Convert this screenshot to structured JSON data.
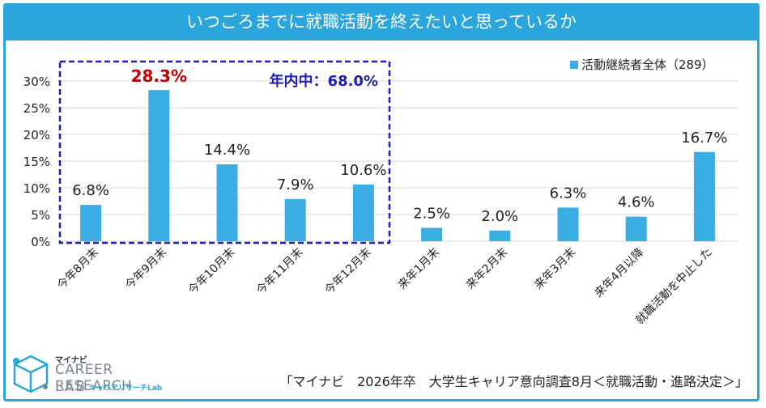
{
  "title": "いつごろまでに就職活動を終えたいと思っているか",
  "legend_label": "活動継続者全体（289）",
  "highlight_label": "年内中：68.0%",
  "source": "「マイナビ　2026年卒　大学生キャリア意向調査8月＜就職活動・進路決定＞」",
  "logo": {
    "top": "マイナビ",
    "main": "CAREER RESEARCH",
    "lab": "LAB",
    "sub": "キャリアリサーチLab"
  },
  "colors": {
    "bar": "#3aaee3",
    "title_bg": "#2aa6dd",
    "highlight_value": "#c00000",
    "highlight_box": "#1f1fb4"
  },
  "chart_data": {
    "type": "bar",
    "categories": [
      "今年8月末",
      "今年9月末",
      "今年10月末",
      "今年11月末",
      "今年12月末",
      "来年1月末",
      "来年2月末",
      "来年3月末",
      "来年4月以降",
      "就職活動を中止した"
    ],
    "series": [
      {
        "name": "活動継続者全体（289）",
        "values": [
          6.8,
          28.3,
          14.4,
          7.9,
          10.6,
          2.5,
          2.0,
          6.3,
          4.6,
          16.7
        ]
      }
    ],
    "value_labels": [
      "6.8%",
      "28.3%",
      "14.4%",
      "7.9%",
      "10.6%",
      "2.5%",
      "2.0%",
      "6.3%",
      "4.6%",
      "16.7%"
    ],
    "y_ticks": [
      "0%",
      "5%",
      "10%",
      "15%",
      "20%",
      "25%",
      "30%"
    ],
    "ylim": [
      0,
      30
    ],
    "grid": true,
    "legend_position": "top-right",
    "highlight_index": 1,
    "highlight_range": [
      0,
      4
    ]
  }
}
